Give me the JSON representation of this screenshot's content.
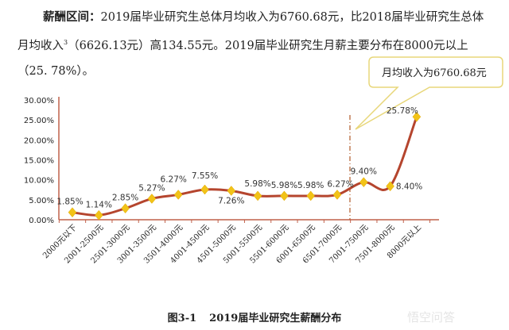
{
  "paragraph": {
    "lead": "薪酬区间：",
    "text1": "2019届毕业研究生总体月均收入为6760.68元，比2018届毕业研究生总体月均收入",
    "footnote": "3",
    "text2": "（6626.13元）高134.55元。2019届毕业研究生月薪主要分布在8000元以上（25. 78%）。"
  },
  "callout": "月均收入为6760.68元",
  "caption": {
    "number": "图3-1",
    "title": "2019届毕业研究生薪酬分布"
  },
  "watermark": "悟空问答",
  "chart_data": {
    "type": "line",
    "categories": [
      "2000元以下",
      "2001-2500元",
      "2501-3000元",
      "3001-3500元",
      "3501-4000元",
      "4001-4500元",
      "4501-5000元",
      "5001-5500元",
      "5501-6000元",
      "6001-6500元",
      "6501-7000元",
      "7001-7500元",
      "7501-8000元",
      "8000元以上"
    ],
    "values": [
      1.85,
      1.14,
      2.85,
      5.27,
      6.27,
      7.55,
      7.26,
      5.98,
      5.98,
      5.98,
      6.27,
      9.4,
      8.4,
      25.78
    ],
    "data_labels": [
      "1.85%",
      "1.14%",
      "2.85%",
      "5.27%",
      "6.27%",
      "7.55%",
      "7.26%",
      "5.98%",
      "5.98%",
      "5.98%",
      "6.27%",
      "9.40%",
      "8.40%",
      "25.78%"
    ],
    "yticks": [
      "0.00%",
      "5.00%",
      "10.00%",
      "15.00%",
      "20.00%",
      "25.00%",
      "30.00%"
    ],
    "ylim": [
      0,
      30
    ],
    "grid": false,
    "colors": {
      "line": "#b5452e",
      "marker": "#f2c318",
      "axis": "#c0604a",
      "callout_border": "#e8d77a",
      "marker_line": "#7a7a3a"
    }
  }
}
